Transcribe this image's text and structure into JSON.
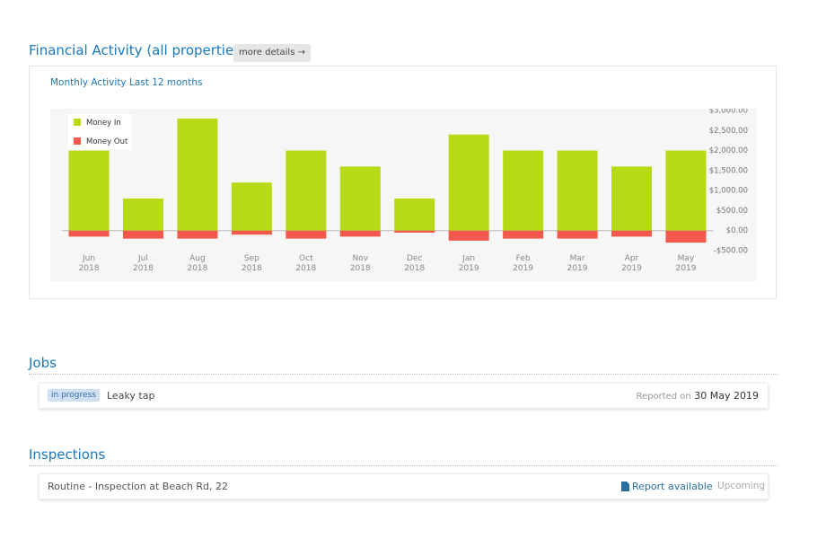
{
  "header": {
    "title": "Financial Activity (all properties)",
    "button": "more details →"
  },
  "chart_data": {
    "type": "bar",
    "stacked": true,
    "title": "Monthly Activity Last 12 months",
    "categories": [
      "Jun 2018",
      "Jul 2018",
      "Aug 2018",
      "Sep 2018",
      "Oct 2018",
      "Nov 2018",
      "Dec 2018",
      "Jan 2019",
      "Feb 2019",
      "Mar 2019",
      "Apr 2019",
      "May 2019"
    ],
    "series": [
      {
        "name": "Money In",
        "color": "#b6da14",
        "values": [
          2000,
          800,
          2800,
          1200,
          2000,
          1600,
          800,
          2400,
          2000,
          2000,
          1600,
          2000
        ]
      },
      {
        "name": "Money Out",
        "color": "#f4574c",
        "values": [
          -150,
          -200,
          -200,
          -100,
          -200,
          -150,
          -50,
          -250,
          -200,
          -200,
          -150,
          -300
        ]
      }
    ],
    "ylim": [
      -500,
      3000
    ],
    "yticks": [
      {
        "value": -500,
        "label": "-$500.00"
      },
      {
        "value": 0,
        "label": "$0.00"
      },
      {
        "value": 500,
        "label": "$500.00"
      },
      {
        "value": 1000,
        "label": "$1,000.00"
      },
      {
        "value": 1500,
        "label": "$1,500.00"
      },
      {
        "value": 2000,
        "label": "$2,000.00"
      },
      {
        "value": 2500,
        "label": "$2,500.00"
      },
      {
        "value": 3000,
        "label": "$3,000.00"
      }
    ],
    "legend": "top-left"
  },
  "jobs": {
    "title": "Jobs",
    "items": [
      {
        "status": "in progress",
        "name": "Leaky tap",
        "reported_label": "Reported on",
        "date": "30 May 2019"
      }
    ]
  },
  "inspections": {
    "title": "Inspections",
    "items": [
      {
        "name": "Routine - Inspection at Beach Rd, 22",
        "report": "Report available",
        "status": "Upcoming"
      }
    ]
  }
}
